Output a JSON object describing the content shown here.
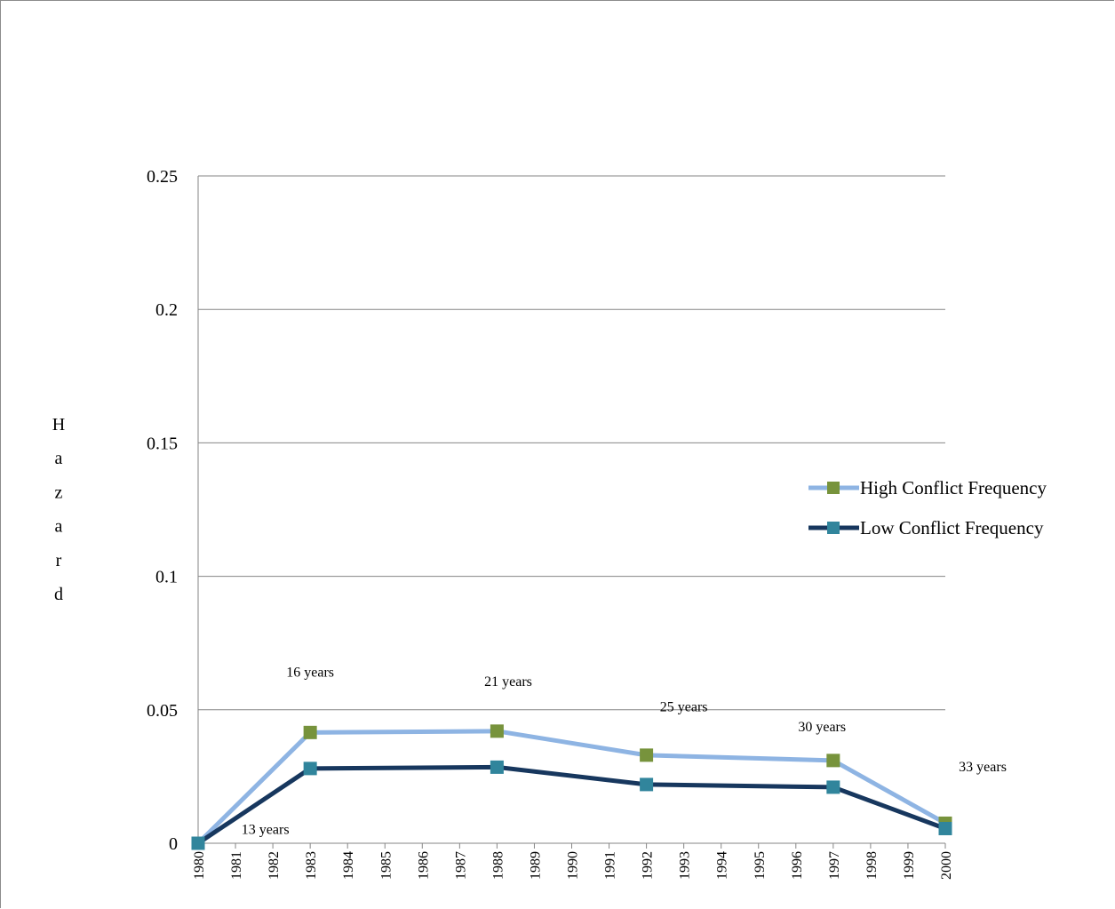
{
  "chart_data": {
    "type": "line",
    "title": "",
    "xlabel": "",
    "ylabel": "Hazard",
    "ylim": [
      0,
      0.25
    ],
    "yticks": [
      "0",
      "0.05",
      "0.1",
      "0.15",
      "0.2",
      "0.25"
    ],
    "categories": [
      "1980",
      "1981",
      "1982",
      "1983",
      "1984",
      "1985",
      "1986",
      "1987",
      "1988",
      "1989",
      "1990",
      "1991",
      "1992",
      "1993",
      "1994",
      "1995",
      "1996",
      "1997",
      "1998",
      "1999",
      "2000"
    ],
    "series": [
      {
        "name": "High Conflict Frequency",
        "color": "#8eb4e3",
        "marker_color": "#77933c",
        "points": [
          {
            "x": "1980",
            "y": 0.0
          },
          {
            "x": "1983",
            "y": 0.0415
          },
          {
            "x": "1988",
            "y": 0.042
          },
          {
            "x": "1992",
            "y": 0.033
          },
          {
            "x": "1997",
            "y": 0.031
          },
          {
            "x": "2000",
            "y": 0.0075
          }
        ]
      },
      {
        "name": "Low Conflict Frequency",
        "color": "#17375e",
        "marker_color": "#31859c",
        "points": [
          {
            "x": "1980",
            "y": 0.0
          },
          {
            "x": "1983",
            "y": 0.028
          },
          {
            "x": "1988",
            "y": 0.0285
          },
          {
            "x": "1992",
            "y": 0.022
          },
          {
            "x": "1997",
            "y": 0.021
          },
          {
            "x": "2000",
            "y": 0.0055
          }
        ]
      }
    ],
    "annotations": [
      {
        "text": "13 years",
        "x": "1981.8",
        "y": 0.0035
      },
      {
        "text": "16 years",
        "x": "1983",
        "y": 0.0625
      },
      {
        "text": "21 years",
        "x": "1988.3",
        "y": 0.059
      },
      {
        "text": "25 years",
        "x": "1993",
        "y": 0.0495
      },
      {
        "text": "30 years",
        "x": "1996.7",
        "y": 0.042
      },
      {
        "text": "33 years",
        "x": "2001",
        "y": 0.027
      }
    ],
    "grid": true,
    "legend_position": "right"
  }
}
